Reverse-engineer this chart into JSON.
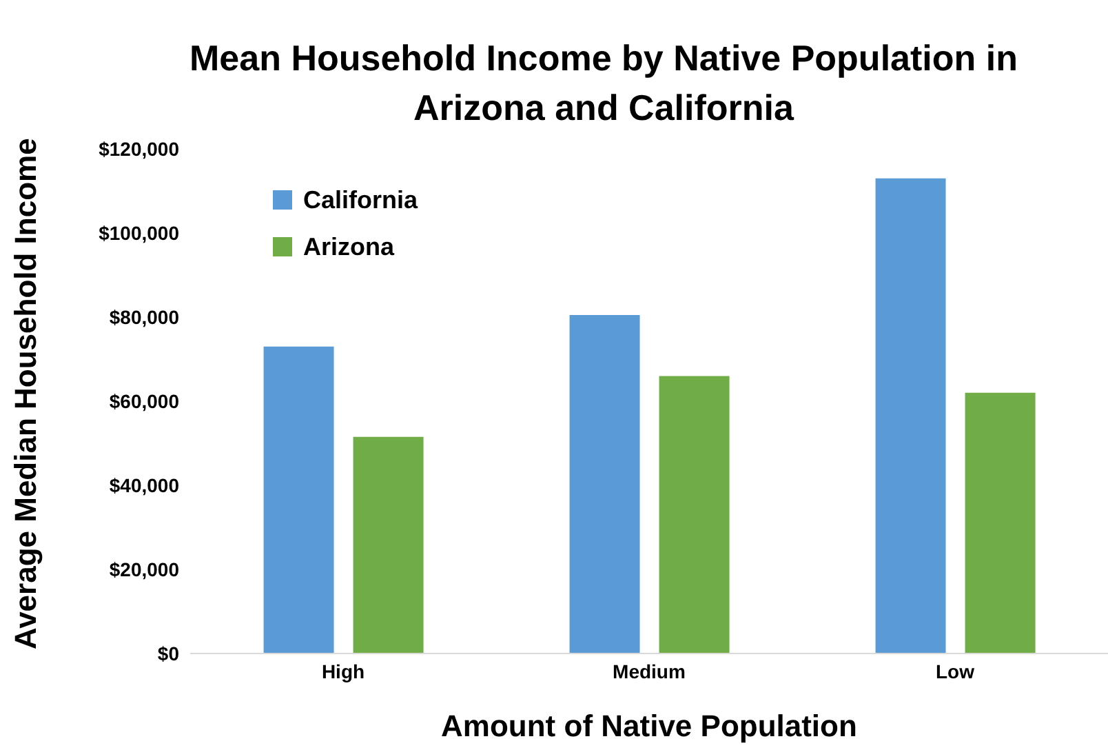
{
  "chart_data": {
    "type": "bar",
    "title": "Mean Household Income by Native Population in Arizona and California",
    "xlabel": "Amount of Native Population",
    "ylabel": "Average Median Household Income",
    "categories": [
      "High",
      "Medium",
      "Low"
    ],
    "series": [
      {
        "name": "California",
        "color": "#5b9bd5",
        "values": [
          73000,
          80500,
          113000
        ]
      },
      {
        "name": "Arizona",
        "color": "#70ad47",
        "values": [
          51500,
          66000,
          62000
        ]
      }
    ],
    "ylim": [
      0,
      120000
    ],
    "yticks": [
      {
        "value": 0,
        "label": "$0"
      },
      {
        "value": 20000,
        "label": "$20,000"
      },
      {
        "value": 40000,
        "label": "$40,000"
      },
      {
        "value": 60000,
        "label": "$60,000"
      },
      {
        "value": 80000,
        "label": "$80,000"
      },
      {
        "value": 100000,
        "label": "$100,000"
      },
      {
        "value": 120000,
        "label": "$120,000"
      }
    ],
    "grid": false,
    "legend": "top left"
  }
}
